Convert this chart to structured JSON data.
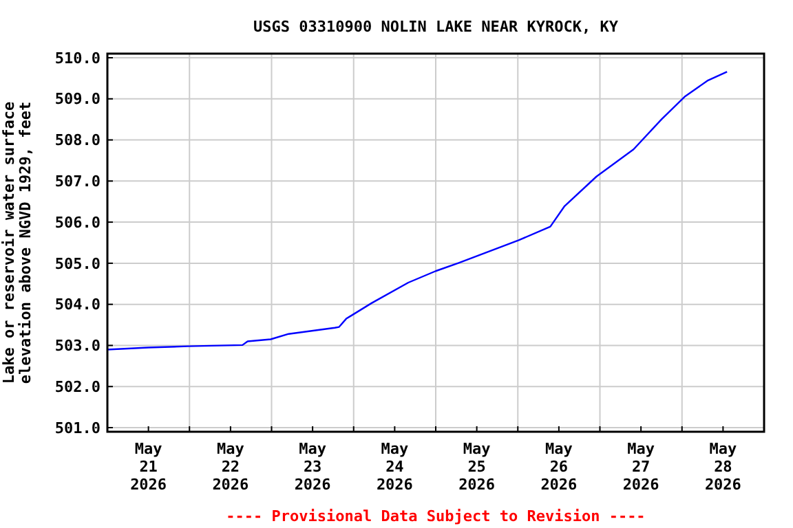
{
  "chart_data": {
    "type": "line",
    "title": "USGS 03310900 NOLIN LAKE NEAR KYROCK, KY",
    "ylabel": "Lake or reservoir water surface\nelevation above NGVD 1929, feet",
    "annotations": [
      "---- Provisional Data Subject to Revision ----"
    ],
    "x": [
      "2026-05-21T00:00",
      "2026-05-21T12:00",
      "2026-05-21T23:30",
      "2026-05-22T15:30",
      "2026-05-22T17:00",
      "2026-05-22T23:45",
      "2026-05-23T05:00",
      "2026-05-23T18:30",
      "2026-05-23T19:45",
      "2026-05-23T21:50",
      "2026-05-24T05:15",
      "2026-05-24T16:00",
      "2026-05-25T00:00",
      "2026-05-25T06:45",
      "2026-05-26T00:15",
      "2026-05-26T09:30",
      "2026-05-26T13:40",
      "2026-05-26T23:00",
      "2026-05-27T09:50",
      "2026-05-27T18:00",
      "2026-05-28T00:45",
      "2026-05-28T07:25",
      "2026-05-28T13:10"
    ],
    "series": [
      {
        "color": "#0000ff",
        "values": [
          502.9,
          502.95,
          502.98,
          503.01,
          503.1,
          503.15,
          503.28,
          503.43,
          503.45,
          503.65,
          504.03,
          504.53,
          504.81,
          505.01,
          505.56,
          505.89,
          506.39,
          507.11,
          507.77,
          508.5,
          509.05,
          509.44,
          509.66
        ]
      }
    ],
    "xlim": [
      "2026-05-21T00:00",
      "2026-05-29T00:00"
    ],
    "xticks": [
      {
        "value": "2026-05-21T12:00",
        "label": "May\n21\n2026"
      },
      {
        "value": "2026-05-22T12:00",
        "label": "May\n22\n2026"
      },
      {
        "value": "2026-05-23T12:00",
        "label": "May\n23\n2026"
      },
      {
        "value": "2026-05-24T12:00",
        "label": "May\n24\n2026"
      },
      {
        "value": "2026-05-25T12:00",
        "label": "May\n25\n2026"
      },
      {
        "value": "2026-05-26T12:00",
        "label": "May\n26\n2026"
      },
      {
        "value": "2026-05-27T12:00",
        "label": "May\n27\n2026"
      },
      {
        "value": "2026-05-28T12:00",
        "label": "May\n28\n2026"
      },
      {
        "value": "2026-05-22T00:00",
        "label": null
      },
      {
        "value": "2026-05-23T00:00",
        "label": null
      },
      {
        "value": "2026-05-24T00:00",
        "label": null
      },
      {
        "value": "2026-05-25T00:00",
        "label": null
      },
      {
        "value": "2026-05-26T00:00",
        "label": null
      },
      {
        "value": "2026-05-27T00:00",
        "label": null
      },
      {
        "value": "2026-05-28T00:00",
        "label": null
      }
    ],
    "ylim": [
      500.9,
      510.1
    ],
    "yticks": [
      {
        "value": 501,
        "label": "501.0"
      },
      {
        "value": 502,
        "label": "502.0"
      },
      {
        "value": 503,
        "label": "503.0"
      },
      {
        "value": 504,
        "label": "504.0"
      },
      {
        "value": 505,
        "label": "505.0"
      },
      {
        "value": 506,
        "label": "506.0"
      },
      {
        "value": 507,
        "label": "507.0"
      },
      {
        "value": 508,
        "label": "508.0"
      },
      {
        "value": 509,
        "label": "509.0"
      },
      {
        "value": 510,
        "label": "510.0"
      }
    ],
    "grid": true,
    "marker": "none",
    "line_style": "solid"
  }
}
